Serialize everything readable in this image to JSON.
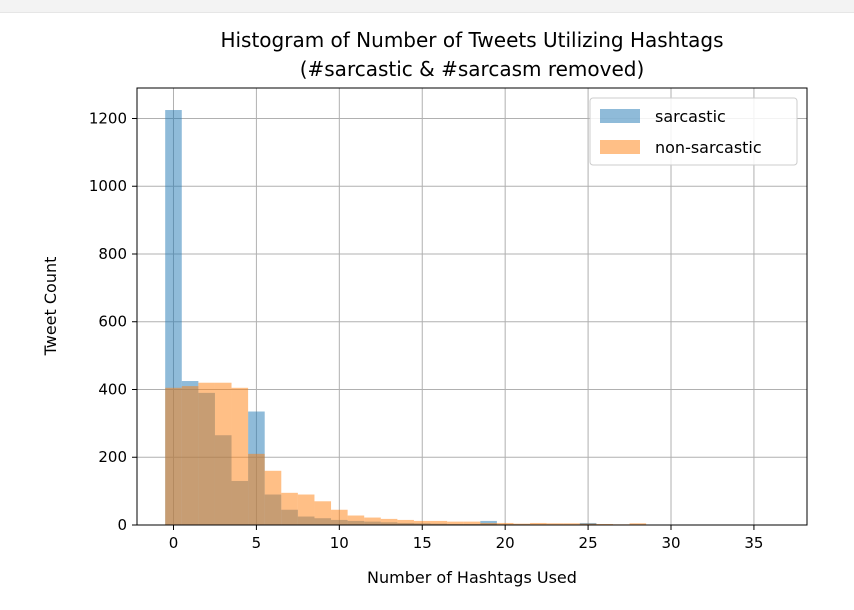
{
  "chart_data": {
    "type": "bar",
    "title": "Histogram of Number of Tweets Utilizing Hashtags",
    "subtitle": "(#sarcastic & #sarcasm removed)",
    "xlabel": "Number of Hashtags Used",
    "ylabel": "Tweet Count",
    "xlim": [
      -2.2,
      38.2
    ],
    "ylim": [
      0,
      1290
    ],
    "xticks": [
      0,
      5,
      10,
      15,
      20,
      25,
      30,
      35
    ],
    "yticks": [
      0,
      200,
      400,
      600,
      800,
      1000,
      1200
    ],
    "grid": true,
    "legend_position": "top-right",
    "bin_width": 1,
    "series": [
      {
        "name": "sarcastic",
        "color": "#1f77b4",
        "bins": [
          [
            -0.5,
            1225
          ],
          [
            0.5,
            425
          ],
          [
            1.5,
            390
          ],
          [
            2.5,
            265
          ],
          [
            3.5,
            130
          ],
          [
            4.5,
            335
          ],
          [
            5.5,
            90
          ],
          [
            6.5,
            45
          ],
          [
            7.5,
            25
          ],
          [
            8.5,
            20
          ],
          [
            9.5,
            15
          ],
          [
            10.5,
            12
          ],
          [
            11.5,
            10
          ],
          [
            12.5,
            8
          ],
          [
            13.5,
            6
          ],
          [
            14.5,
            5
          ],
          [
            15.5,
            4
          ],
          [
            16.5,
            3
          ],
          [
            17.5,
            3
          ],
          [
            18.5,
            12
          ],
          [
            19.5,
            2
          ],
          [
            20.5,
            2
          ],
          [
            21.5,
            1
          ],
          [
            22.5,
            1
          ],
          [
            23.5,
            1
          ],
          [
            24.5,
            6
          ]
        ]
      },
      {
        "name": "non-sarcastic",
        "color": "#ff7f0e",
        "bins": [
          [
            -0.5,
            405
          ],
          [
            0.5,
            410
          ],
          [
            1.5,
            420
          ],
          [
            2.5,
            420
          ],
          [
            3.5,
            405
          ],
          [
            4.5,
            210
          ],
          [
            5.5,
            160
          ],
          [
            6.5,
            95
          ],
          [
            7.5,
            90
          ],
          [
            8.5,
            70
          ],
          [
            9.5,
            45
          ],
          [
            10.5,
            28
          ],
          [
            11.5,
            22
          ],
          [
            12.5,
            18
          ],
          [
            13.5,
            15
          ],
          [
            14.5,
            12
          ],
          [
            15.5,
            12
          ],
          [
            16.5,
            10
          ],
          [
            17.5,
            10
          ],
          [
            18.5,
            6
          ],
          [
            19.5,
            6
          ],
          [
            20.5,
            4
          ],
          [
            21.5,
            6
          ],
          [
            22.5,
            5
          ],
          [
            23.5,
            5
          ],
          [
            24.5,
            4
          ],
          [
            25.5,
            3
          ],
          [
            26.5,
            2
          ],
          [
            27.5,
            5
          ],
          [
            28.5,
            1
          ],
          [
            29.5,
            1
          ],
          [
            30.5,
            1
          ],
          [
            31.5,
            1
          ],
          [
            32.5,
            1
          ],
          [
            33.5,
            1
          ],
          [
            34.5,
            1
          ],
          [
            35.5,
            1
          ]
        ]
      }
    ]
  }
}
